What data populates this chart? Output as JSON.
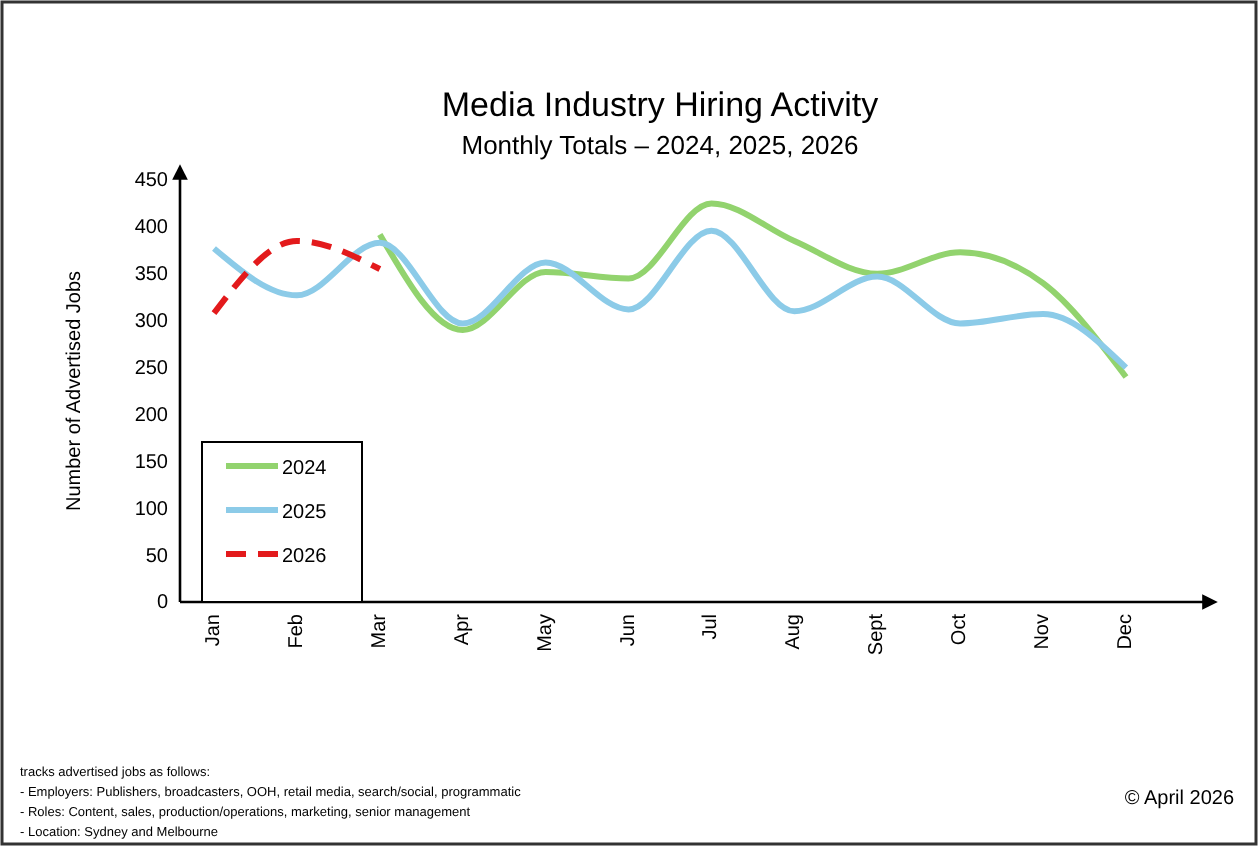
{
  "chart_data": {
    "type": "line",
    "title": "Media Industry Hiring Activity",
    "subtitle": "Monthly Totals – 2024, 2025, 2026",
    "ylabel": "Number of Advertised Jobs",
    "categories": [
      "Jan",
      "Feb",
      "Mar",
      "Apr",
      "May",
      "Jun",
      "Jul",
      "Aug",
      "Sept",
      "Oct",
      "Nov",
      "Dec"
    ],
    "series": [
      {
        "name": "2024",
        "color": "#92d36e",
        "values": [
          null,
          null,
          392,
          290,
          352,
          345,
          425,
          385,
          350,
          373,
          340,
          240
        ]
      },
      {
        "name": "2025",
        "color": "#8ccbe8",
        "values": [
          377,
          327,
          383,
          297,
          362,
          312,
          396,
          310,
          347,
          297,
          307,
          250
        ]
      },
      {
        "name": "2026",
        "color": "#e31a1c",
        "line_style": "dashed",
        "values": [
          308,
          385,
          355,
          null,
          null,
          null,
          null,
          null,
          null,
          null,
          null,
          null
        ]
      }
    ],
    "ylim": [
      0,
      450
    ],
    "yticks": [
      0,
      50,
      100,
      150,
      200,
      250,
      300,
      350,
      400,
      450
    ],
    "grid": false,
    "legend": "bottom left",
    "marker": "none",
    "annotations": [
      "tracks advertised jobs as follows:",
      "- Employers: Publishers, broadcasters, OOH, retail media, search/social, programmatic",
      "- Roles: Content, sales, production/operations, marketing, senior management",
      "- Location: Sydney and Melbourne",
      "© April 2026"
    ]
  }
}
